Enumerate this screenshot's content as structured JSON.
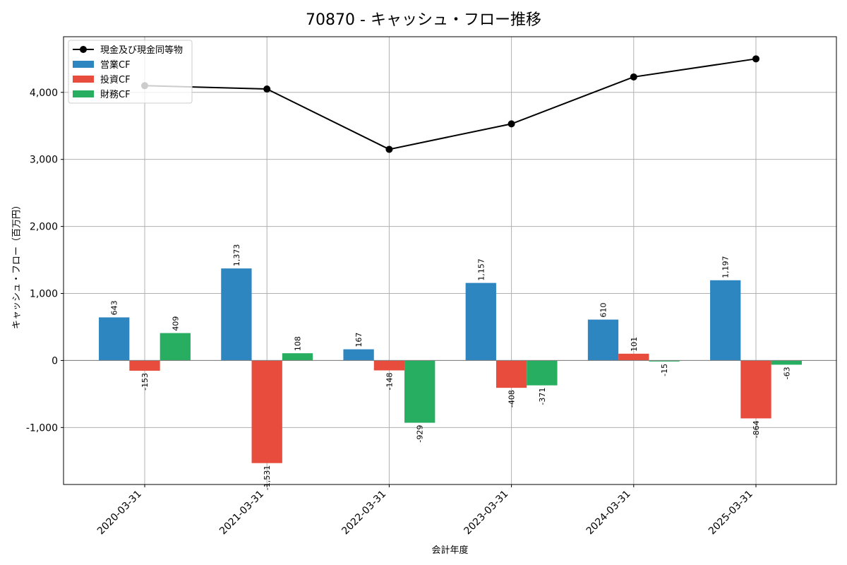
{
  "chart_data": {
    "type": "bar",
    "title": "70870 - キャッシュ・フロー推移",
    "xlabel": "会計年度",
    "ylabel": "キャッシュ・フロー（百万円）",
    "categories": [
      "2020-03-31",
      "2021-03-31",
      "2022-03-31",
      "2023-03-31",
      "2024-03-31",
      "2025-03-31"
    ],
    "ylim": [
      -1850,
      4830
    ],
    "yticks": [
      -1000,
      0,
      1000,
      2000,
      3000,
      4000
    ],
    "ytick_labels": [
      "-1,000",
      "0",
      "1,000",
      "2,000",
      "3,000",
      "4,000"
    ],
    "grid": true,
    "legend_position": "top-left",
    "series": [
      {
        "name": "営業CF",
        "kind": "bar",
        "color": "#2e86c1",
        "values": [
          643,
          1373,
          167,
          1157,
          610,
          1197
        ],
        "labels": [
          "643",
          "1,373",
          "167",
          "1,157",
          "610",
          "1,197"
        ]
      },
      {
        "name": "投資CF",
        "kind": "bar",
        "color": "#e74c3c",
        "values": [
          -153,
          -1531,
          -148,
          -408,
          101,
          -864
        ],
        "labels": [
          "-153",
          "-1,531",
          "-148",
          "-408",
          "101",
          "-864"
        ]
      },
      {
        "name": "財務CF",
        "kind": "bar",
        "color": "#27ae60",
        "values": [
          409,
          108,
          -929,
          -371,
          -15,
          -63
        ],
        "labels": [
          "409",
          "108",
          "-929",
          "-371",
          "-15",
          "-63"
        ]
      },
      {
        "name": "現金及び現金同等物",
        "kind": "line",
        "color": "#000000",
        "values": [
          4100,
          4050,
          3150,
          3530,
          4230,
          4500
        ]
      }
    ]
  }
}
